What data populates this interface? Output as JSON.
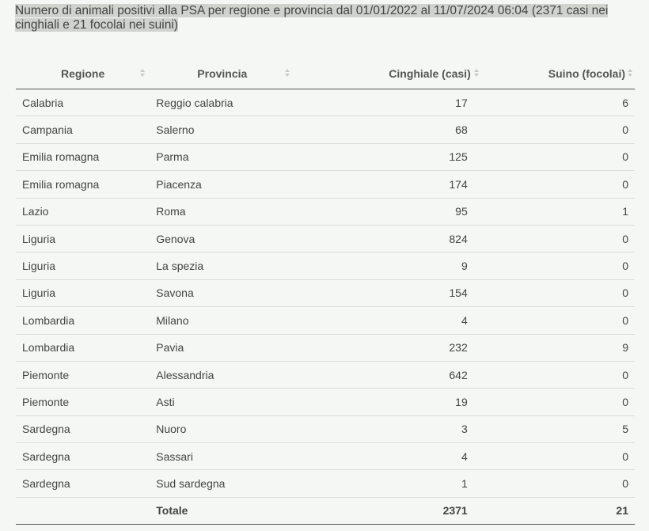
{
  "caption": "Numero di animali positivi alla PSA per regione e provincia dal 01/01/2022 al 11/07/2024 06:04 (2371 casi nei cinghiali e 21 focolai nei suini)",
  "table": {
    "headers": {
      "regione": "Regione",
      "provincia": "Provincia",
      "cinghiale": "Cinghiale (casi)",
      "suino": "Suino (focolai)"
    },
    "rows": [
      {
        "regione": "Calabria",
        "provincia": "Reggio calabria",
        "cinghiale": "17",
        "suino": "6"
      },
      {
        "regione": "Campania",
        "provincia": "Salerno",
        "cinghiale": "68",
        "suino": "0"
      },
      {
        "regione": "Emilia romagna",
        "provincia": "Parma",
        "cinghiale": "125",
        "suino": "0"
      },
      {
        "regione": "Emilia romagna",
        "provincia": "Piacenza",
        "cinghiale": "174",
        "suino": "0"
      },
      {
        "regione": "Lazio",
        "provincia": "Roma",
        "cinghiale": "95",
        "suino": "1"
      },
      {
        "regione": "Liguria",
        "provincia": "Genova",
        "cinghiale": "824",
        "suino": "0"
      },
      {
        "regione": "Liguria",
        "provincia": "La spezia",
        "cinghiale": "9",
        "suino": "0"
      },
      {
        "regione": "Liguria",
        "provincia": "Savona",
        "cinghiale": "154",
        "suino": "0"
      },
      {
        "regione": "Lombardia",
        "provincia": "Milano",
        "cinghiale": "4",
        "suino": "0"
      },
      {
        "regione": "Lombardia",
        "provincia": "Pavia",
        "cinghiale": "232",
        "suino": "9"
      },
      {
        "regione": "Piemonte",
        "provincia": "Alessandria",
        "cinghiale": "642",
        "suino": "0"
      },
      {
        "regione": "Piemonte",
        "provincia": "Asti",
        "cinghiale": "19",
        "suino": "0"
      },
      {
        "regione": "Sardegna",
        "provincia": "Nuoro",
        "cinghiale": "3",
        "suino": "5"
      },
      {
        "regione": "Sardegna",
        "provincia": "Sassari",
        "cinghiale": "4",
        "suino": "0"
      },
      {
        "regione": "Sardegna",
        "provincia": "Sud sardegna",
        "cinghiale": "1",
        "suino": "0"
      }
    ],
    "footer": {
      "regione": "",
      "provincia": "Totale",
      "cinghiale": "2371",
      "suino": "21"
    }
  },
  "icons": {
    "sort": "sort-arrows-icon"
  },
  "colors": {
    "background": "#f4f7f3",
    "caption_highlight": "#cfd2cd",
    "text": "#444444",
    "row_divider": "#dcdcdc"
  }
}
